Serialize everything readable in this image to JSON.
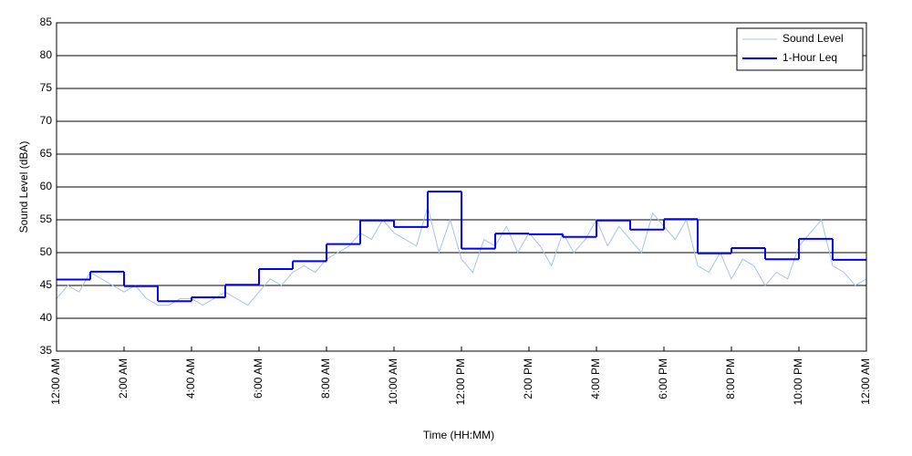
{
  "chart_data": {
    "type": "line",
    "xlabel": "Time (HH:MM)",
    "ylabel": "Sound Level (dBA)",
    "xlim": [
      0,
      1440
    ],
    "ylim": [
      35,
      85
    ],
    "yticks": [
      35,
      40,
      45,
      50,
      55,
      60,
      65,
      70,
      75,
      80,
      85
    ],
    "xticks": [
      {
        "value": 0,
        "label": "12:00 AM"
      },
      {
        "value": 120,
        "label": "2:00 AM"
      },
      {
        "value": 240,
        "label": "4:00 AM"
      },
      {
        "value": 360,
        "label": "6:00 AM"
      },
      {
        "value": 480,
        "label": "8:00 AM"
      },
      {
        "value": 600,
        "label": "10:00 AM"
      },
      {
        "value": 720,
        "label": "12:00 PM"
      },
      {
        "value": 840,
        "label": "2:00 PM"
      },
      {
        "value": 960,
        "label": "4:00 PM"
      },
      {
        "value": 1080,
        "label": "6:00 PM"
      },
      {
        "value": 1200,
        "label": "8:00 PM"
      },
      {
        "value": 1320,
        "label": "10:00 PM"
      },
      {
        "value": 1440,
        "label": "12:00 AM"
      }
    ],
    "grid": "y",
    "legend": "upper right",
    "series": [
      {
        "name": "Sound Level",
        "color": "#a8c0f0",
        "x": [
          0,
          20,
          40,
          60,
          80,
          100,
          120,
          140,
          160,
          180,
          200,
          220,
          240,
          260,
          280,
          300,
          320,
          340,
          360,
          380,
          400,
          420,
          440,
          460,
          480,
          500,
          520,
          540,
          560,
          580,
          600,
          620,
          640,
          660,
          680,
          700,
          720,
          740,
          760,
          780,
          800,
          820,
          840,
          860,
          880,
          900,
          920,
          940,
          960,
          980,
          1000,
          1020,
          1040,
          1060,
          1080,
          1100,
          1120,
          1140,
          1160,
          1180,
          1200,
          1220,
          1240,
          1260,
          1280,
          1300,
          1320,
          1340,
          1360,
          1380,
          1400,
          1420,
          1440
        ],
        "values": [
          43,
          45,
          44,
          47,
          46,
          45,
          44,
          45,
          43,
          42,
          42,
          43,
          43,
          42,
          43,
          44,
          43,
          42,
          44,
          46,
          45,
          47,
          48,
          47,
          49,
          50,
          51,
          53,
          52,
          55,
          53,
          52,
          51,
          57,
          50,
          55,
          49,
          47,
          52,
          51,
          54,
          50,
          53,
          51,
          48,
          53,
          50,
          52,
          55,
          51,
          54,
          52,
          50,
          56,
          54,
          52,
          55,
          48,
          47,
          50,
          46,
          49,
          48,
          45,
          47,
          46,
          51,
          53,
          55,
          48,
          47,
          45,
          46
        ]
      },
      {
        "name": "1-Hour Leq",
        "color": "#0000ff",
        "step": "post",
        "x": [
          0,
          60,
          120,
          180,
          240,
          300,
          360,
          420,
          480,
          540,
          600,
          660,
          720,
          780,
          840,
          900,
          960,
          1020,
          1080,
          1140,
          1200,
          1260,
          1320,
          1380
        ],
        "values": [
          45.9,
          47.1,
          44.9,
          42.6,
          43.2,
          45.1,
          47.5,
          48.7,
          51.3,
          54.9,
          53.9,
          59.3,
          50.6,
          52.9,
          52.8,
          52.4,
          54.9,
          53.5,
          55.1,
          49.9,
          50.7,
          49.0,
          52.1,
          48.9
        ]
      }
    ]
  }
}
